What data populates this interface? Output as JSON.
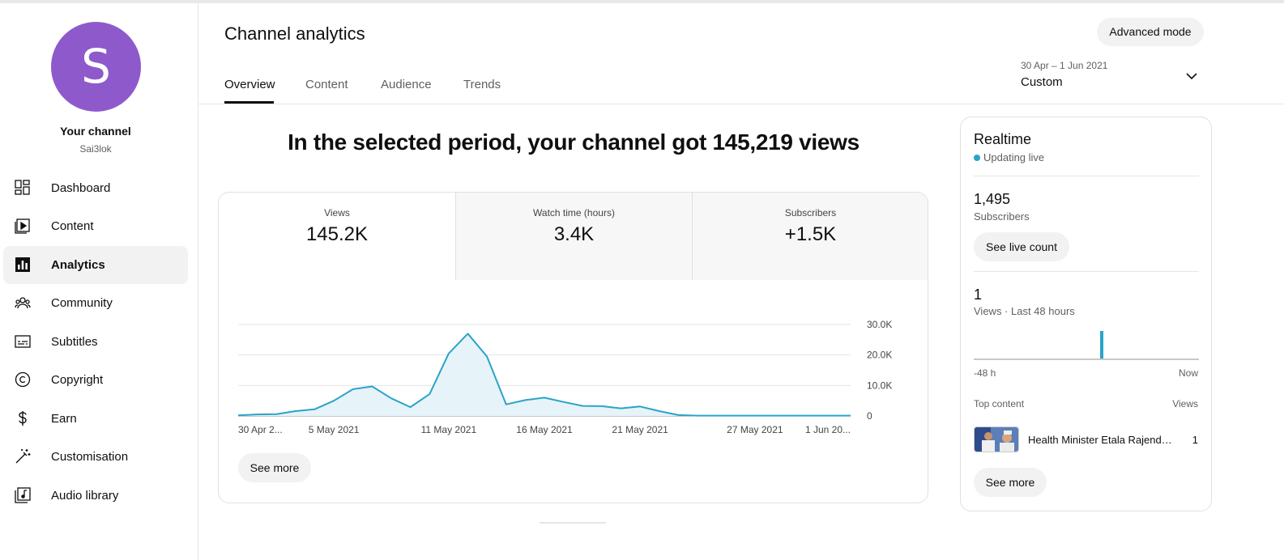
{
  "sidebar": {
    "avatar_letter": "S",
    "avatar_color": "#8e5acb",
    "channel_title": "Your channel",
    "channel_handle": "Sai3lok",
    "items": [
      {
        "label": "Dashboard",
        "icon": "dashboard-icon"
      },
      {
        "label": "Content",
        "icon": "content-icon"
      },
      {
        "label": "Analytics",
        "icon": "analytics-icon",
        "active": true
      },
      {
        "label": "Community",
        "icon": "community-icon"
      },
      {
        "label": "Subtitles",
        "icon": "subtitles-icon"
      },
      {
        "label": "Copyright",
        "icon": "copyright-icon"
      },
      {
        "label": "Earn",
        "icon": "earn-icon"
      },
      {
        "label": "Customisation",
        "icon": "customisation-icon"
      },
      {
        "label": "Audio library",
        "icon": "audio-library-icon"
      }
    ]
  },
  "header": {
    "title": "Channel analytics",
    "advanced_mode_label": "Advanced mode",
    "tabs": [
      {
        "label": "Overview",
        "active": true
      },
      {
        "label": "Content"
      },
      {
        "label": "Audience"
      },
      {
        "label": "Trends"
      }
    ],
    "date_range": "30 Apr – 1 Jun 2021",
    "date_preset": "Custom"
  },
  "headline": "In the selected period, your channel got 145,219 views",
  "metrics": [
    {
      "label": "Views",
      "value": "145.2K"
    },
    {
      "label": "Watch time (hours)",
      "value": "3.4K"
    },
    {
      "label": "Subscribers",
      "value": "+1.5K"
    }
  ],
  "chart_data": {
    "type": "area",
    "ylim": [
      0,
      30000
    ],
    "y_ticks": [
      0,
      10000,
      20000,
      30000
    ],
    "y_tick_labels": [
      "0",
      "10.0K",
      "20.0K",
      "30.0K"
    ],
    "x_tick_labels": [
      {
        "label": "30 Apr 2...",
        "index": 0
      },
      {
        "label": "5 May 2021",
        "index": 5
      },
      {
        "label": "11 May 2021",
        "index": 11
      },
      {
        "label": "16 May 2021",
        "index": 16
      },
      {
        "label": "21 May 2021",
        "index": 21
      },
      {
        "label": "27 May 2021",
        "index": 27
      },
      {
        "label": "1 Jun 20...",
        "index": 32
      }
    ],
    "x": [
      "30 Apr",
      "1 May",
      "2 May",
      "3 May",
      "4 May",
      "5 May",
      "6 May",
      "7 May",
      "8 May",
      "9 May",
      "10 May",
      "11 May",
      "12 May",
      "13 May",
      "14 May",
      "15 May",
      "16 May",
      "17 May",
      "18 May",
      "19 May",
      "20 May",
      "21 May",
      "22 May",
      "23 May",
      "24 May",
      "25 May",
      "26 May",
      "27 May",
      "28 May",
      "29 May",
      "30 May",
      "31 May",
      "1 Jun"
    ],
    "series": [
      {
        "values": [
          200,
          500,
          600,
          1600,
          2200,
          5000,
          8800,
          9700,
          5800,
          2900,
          7200,
          20500,
          27000,
          19500,
          3800,
          5200,
          6000,
          4600,
          3300,
          3200,
          2500,
          3100,
          1600,
          300,
          100,
          100,
          100,
          100,
          100,
          100,
          100,
          100,
          100
        ]
      }
    ],
    "line_color": "#2ba3c9",
    "fill_color": "#e6f3f8",
    "see_more_label": "See more"
  },
  "realtime": {
    "title": "Realtime",
    "live_label": "Updating live",
    "subscribers_value": "1,495",
    "subscribers_label": "Subscribers",
    "see_live_count_label": "See live count",
    "views_value": "1",
    "views_label": "Views · Last 48 hours",
    "axis_start": "-48 h",
    "axis_end": "Now",
    "top_content_label": "Top content",
    "views_column_label": "Views",
    "top_video_title": "Health Minister Etala Rajender Press Meet",
    "top_video_views": "1",
    "see_more_label": "See more"
  }
}
